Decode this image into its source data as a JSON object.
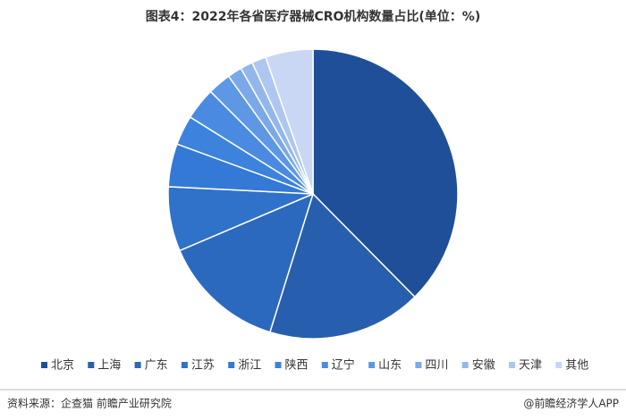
{
  "chart_data": {
    "type": "pie",
    "title": "图表4：2022年各省医疗器械CRO机构数量占比(单位：%)",
    "categories": [
      "北京",
      "上海",
      "广东",
      "江苏",
      "浙江",
      "陕西",
      "辽宁",
      "山东",
      "四川",
      "安徽",
      "天津",
      "其他"
    ],
    "values": [
      37.6,
      17.2,
      13.8,
      7.2,
      4.8,
      3.3,
      3.6,
      2.6,
      1.6,
      1.4,
      1.6,
      5.3
    ],
    "colors": [
      "#1f4f99",
      "#275fae",
      "#2b69be",
      "#2f72ca",
      "#3479d5",
      "#3d82dd",
      "#4a8be1",
      "#5e97e4",
      "#7aa8e8",
      "#93b7ec",
      "#adc7f0",
      "#c9d7f4"
    ],
    "legend": "bottom"
  },
  "footer": {
    "source": "资料来源：企查猫 前瞻产业研究院",
    "brand": "@前瞻经济学人APP"
  }
}
